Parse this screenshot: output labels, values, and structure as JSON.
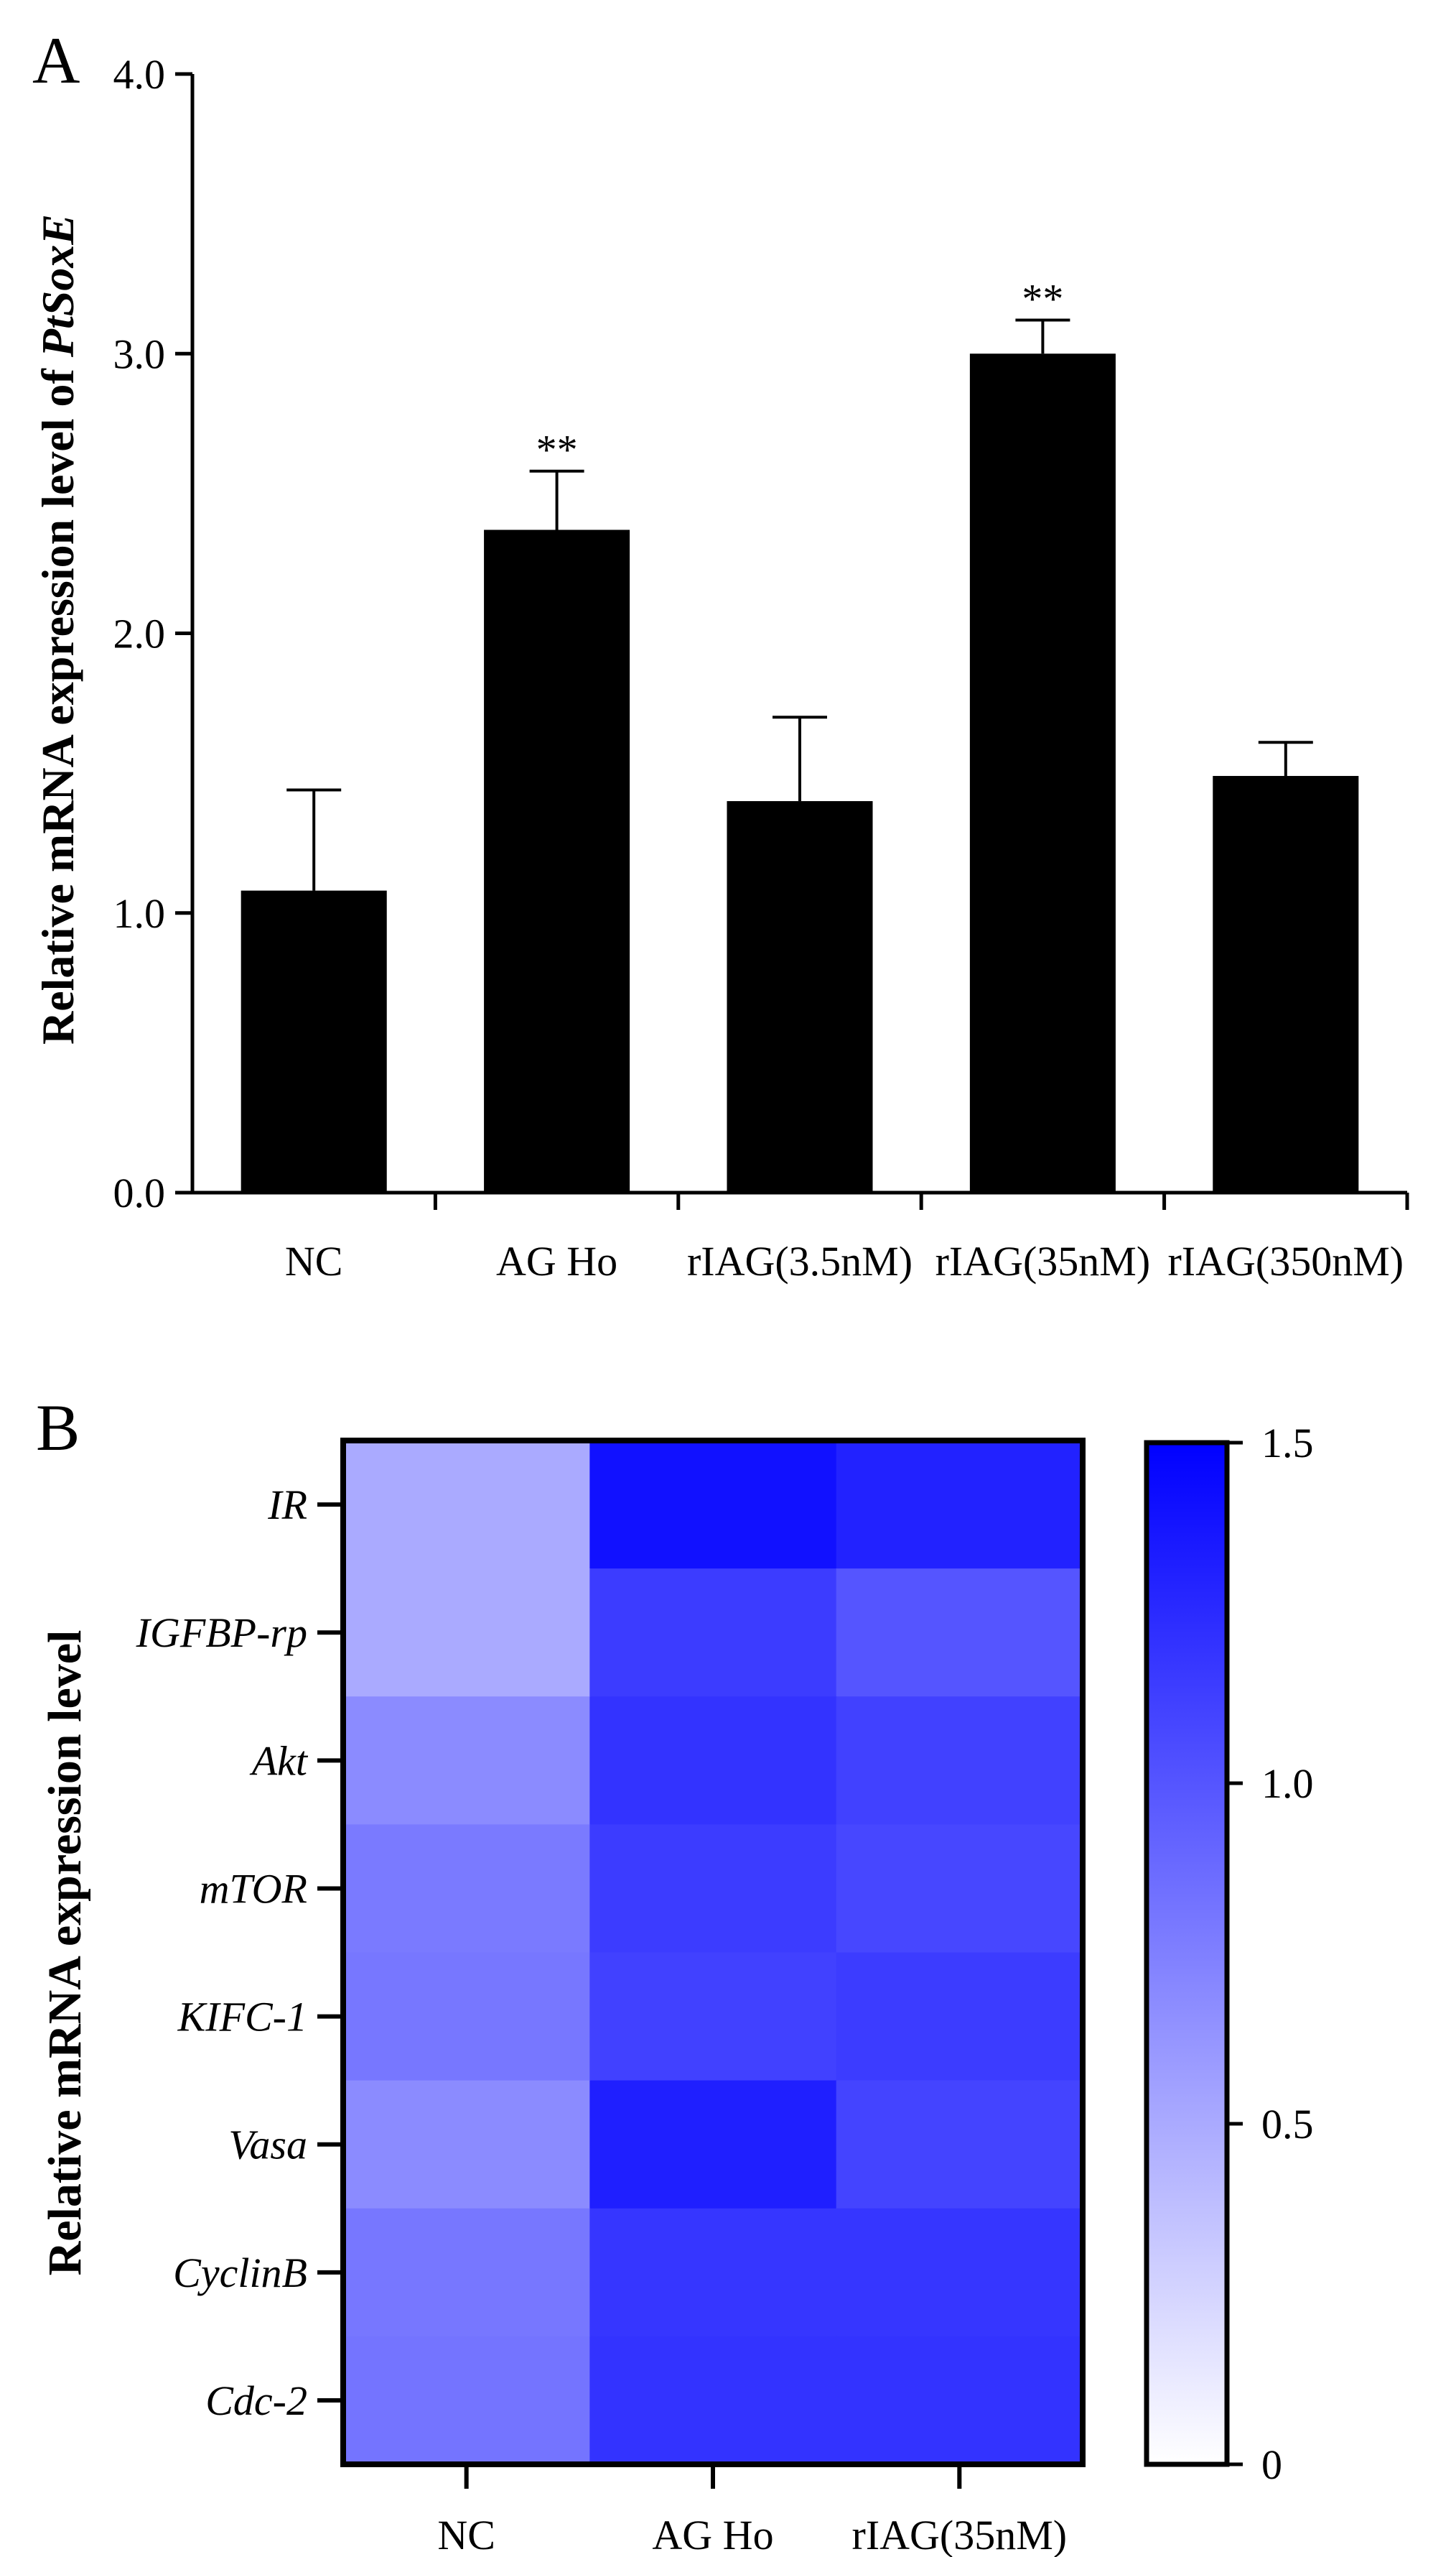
{
  "chart_data": [
    {
      "panel": "A",
      "type": "bar",
      "ylabel_prefix": "Relative mRNA expression level of ",
      "ylabel_gene": "PtSoxE",
      "xlabel": "",
      "ylim": [
        0,
        4.0
      ],
      "yticks": [
        "0.0",
        "1.0",
        "2.0",
        "3.0",
        "4.0"
      ],
      "ytick_values": [
        0,
        1,
        2,
        3,
        4
      ],
      "categories": [
        "NC",
        "AG Ho",
        "rIAG(3.5nM)",
        "rIAG(35nM)",
        "rIAG(350nM)"
      ],
      "values": [
        1.08,
        2.37,
        1.4,
        3.0,
        1.49
      ],
      "errors": [
        0.36,
        0.21,
        0.3,
        0.12,
        0.12
      ],
      "significance": [
        "",
        "**",
        "",
        "**",
        ""
      ],
      "bar_color": "#000000"
    },
    {
      "panel": "B",
      "type": "heatmap",
      "ylabel": "Relative mRNA expression level",
      "columns": [
        "NC",
        "AG Ho",
        "rIAG(35nM)"
      ],
      "rows": [
        "IR",
        "IGFBP-rp",
        "Akt",
        "mTOR",
        "KIFC-1",
        "Vasa",
        "CyclinB",
        "Cdc-2"
      ],
      "values": [
        [
          0.5,
          1.4,
          1.3
        ],
        [
          0.5,
          1.15,
          1.0
        ],
        [
          0.68,
          1.2,
          1.12
        ],
        [
          0.78,
          1.15,
          1.08
        ],
        [
          0.8,
          1.12,
          1.15
        ],
        [
          0.68,
          1.32,
          1.1
        ],
        [
          0.8,
          1.18,
          1.18
        ],
        [
          0.82,
          1.2,
          1.2
        ]
      ],
      "color_range": [
        0,
        1.5
      ],
      "colorbar_ticks": [
        "0",
        "0.5",
        "1.0",
        "1.5"
      ],
      "colorbar_tick_values": [
        0,
        0.5,
        1.0,
        1.5
      ],
      "color_low": "#ffffff",
      "color_high": "#0000ff"
    }
  ]
}
